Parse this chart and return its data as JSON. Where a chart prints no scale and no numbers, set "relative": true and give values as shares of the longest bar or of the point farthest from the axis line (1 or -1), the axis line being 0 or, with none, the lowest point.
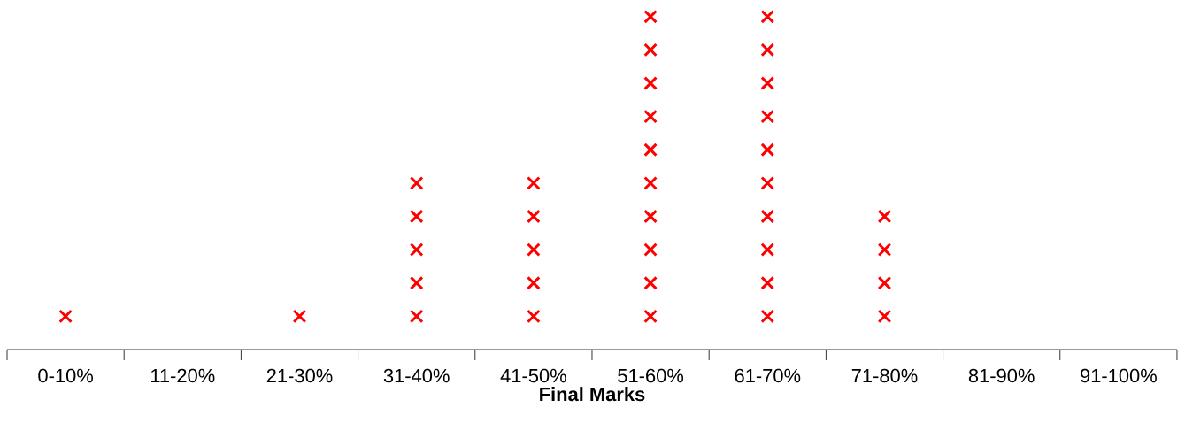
{
  "chart_data": {
    "type": "scatter",
    "relative": true,
    "xlabel": "Final Marks",
    "marker": "cross",
    "grid": false,
    "categories": [
      "0-10%",
      "11-20%",
      "21-30%",
      "31-40%",
      "41-50%",
      "51-60%",
      "61-70%",
      "71-80%",
      "81-90%",
      "91-100%"
    ],
    "series": [
      {
        "color": "#ff0000",
        "x": [
          "0-10%",
          "21-30%",
          "31-40%",
          "31-40%",
          "31-40%",
          "31-40%",
          "31-40%",
          "41-50%",
          "41-50%",
          "41-50%",
          "41-50%",
          "41-50%",
          "51-60%",
          "51-60%",
          "51-60%",
          "51-60%",
          "51-60%",
          "51-60%",
          "51-60%",
          "51-60%",
          "51-60%",
          "51-60%",
          "61-70%",
          "61-70%",
          "61-70%",
          "61-70%",
          "61-70%",
          "61-70%",
          "61-70%",
          "61-70%",
          "61-70%",
          "61-70%",
          "71-80%",
          "71-80%",
          "71-80%",
          "71-80%"
        ],
        "values": [
          0.1,
          0.1,
          0.1,
          0.2,
          0.3,
          0.4,
          0.5,
          0.1,
          0.2,
          0.3,
          0.4,
          0.5,
          0.1,
          0.2,
          0.3,
          0.4,
          0.5,
          0.6,
          0.7,
          0.8,
          0.9,
          1.0,
          0.1,
          0.2,
          0.3,
          0.4,
          0.5,
          0.6,
          0.7,
          0.8,
          0.9,
          1.0,
          0.1,
          0.2,
          0.3,
          0.4
        ]
      }
    ]
  }
}
